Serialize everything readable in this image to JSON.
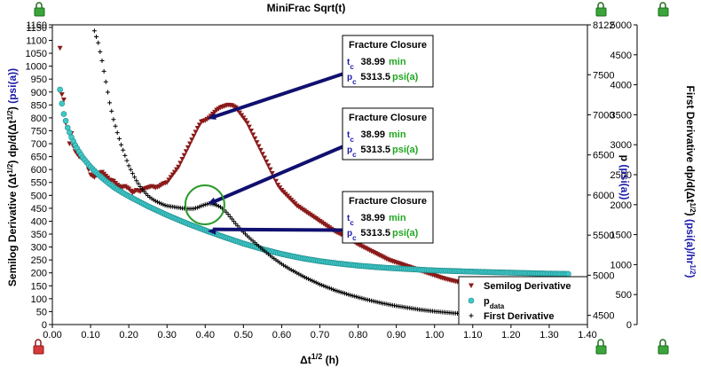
{
  "chart_data": {
    "type": "scatter",
    "title": "MiniFrac Sqrt(t)",
    "xlabel": "Δt^1/2 (h)",
    "ylabel_left": "Semilog Derivative (Δt^1/2) dp/d(Δt^1/2) (psi(a))",
    "ylabel_right1": "p (psi(a))",
    "ylabel_right2": "First Derivative dp/d(Δt^1/2) (psi(a)/hr^1/2)",
    "xlim": [
      0.0,
      1.4
    ],
    "ylim_left": [
      0,
      1160
    ],
    "ylim_p": [
      4385,
      8122
    ],
    "ylim_fd": [
      0,
      5000
    ],
    "x_ticks": [
      "0.00",
      "0.10",
      "0.20",
      "0.30",
      "0.40",
      "0.50",
      "0.60",
      "0.70",
      "0.80",
      "0.90",
      "1.00",
      "1.10",
      "1.20",
      "1.30",
      "1.40"
    ],
    "y_left_ticks": [
      "0",
      "50",
      "100",
      "150",
      "200",
      "250",
      "300",
      "350",
      "400",
      "450",
      "500",
      "550",
      "600",
      "650",
      "700",
      "750",
      "800",
      "850",
      "900",
      "950",
      "1000",
      "1050",
      "1100",
      "1150",
      "1160"
    ],
    "y_p_ticks": [
      "4500",
      "5000",
      "5500",
      "6000",
      "6500",
      "7000",
      "7500",
      "8122"
    ],
    "y_fd_ticks": [
      "0",
      "500",
      "1000",
      "1500",
      "2000",
      "2500",
      "3000",
      "3500",
      "4000",
      "4500",
      "5000"
    ],
    "series": [
      {
        "name": "Semilog Derivative",
        "axis": "left",
        "color": "#8b1a1a",
        "marker": "triangle-down",
        "x": [
          0.02,
          0.025,
          0.03,
          0.035,
          0.04,
          0.045,
          0.05,
          0.055,
          0.06,
          0.07,
          0.08,
          0.09,
          0.1,
          0.11,
          0.12,
          0.13,
          0.14,
          0.15,
          0.16,
          0.17,
          0.18,
          0.19,
          0.2,
          0.21,
          0.22,
          0.23,
          0.24,
          0.25,
          0.26,
          0.27,
          0.28,
          0.29,
          0.3,
          0.31,
          0.32,
          0.33,
          0.34,
          0.35,
          0.36,
          0.37,
          0.38,
          0.39,
          0.4,
          0.41,
          0.42,
          0.43,
          0.44,
          0.45,
          0.46,
          0.47,
          0.48,
          0.49,
          0.5,
          0.51,
          0.52,
          0.53,
          0.54,
          0.55,
          0.56,
          0.57,
          0.58,
          0.59,
          0.6,
          0.62,
          0.64,
          0.66,
          0.68,
          0.7,
          0.72,
          0.74,
          0.76,
          0.78,
          0.8,
          0.82,
          0.84,
          0.86,
          0.88,
          0.9,
          0.92,
          0.94,
          0.96,
          0.98,
          1.0,
          1.02,
          1.04,
          1.06,
          1.08,
          1.1,
          1.12
        ],
        "y": [
          1070,
          890,
          870,
          780,
          760,
          700,
          740,
          690,
          670,
          650,
          640,
          620,
          580,
          570,
          585,
          590,
          575,
          560,
          555,
          540,
          530,
          535,
          525,
          510,
          520,
          515,
          525,
          530,
          535,
          530,
          535,
          545,
          550,
          570,
          590,
          610,
          640,
          670,
          700,
          730,
          760,
          785,
          790,
          800,
          815,
          830,
          840,
          845,
          850,
          848,
          840,
          820,
          800,
          780,
          750,
          720,
          690,
          660,
          630,
          600,
          570,
          540,
          520,
          490,
          460,
          440,
          420,
          400,
          380,
          360,
          345,
          330,
          310,
          295,
          280,
          265,
          250,
          240,
          230,
          220,
          210,
          200,
          190,
          180,
          172,
          165,
          160,
          150,
          145
        ]
      },
      {
        "name": "pdata",
        "axis": "p",
        "color": "#40c8c8",
        "marker": "circle",
        "x": [
          0.02,
          0.025,
          0.03,
          0.04,
          0.05,
          0.06,
          0.07,
          0.08,
          0.1,
          0.12,
          0.14,
          0.16,
          0.18,
          0.2,
          0.25,
          0.3,
          0.35,
          0.4,
          0.45,
          0.5,
          0.55,
          0.6,
          0.65,
          0.7,
          0.75,
          0.8,
          0.85,
          0.9,
          0.95,
          1.0,
          1.05,
          1.1,
          1.15,
          1.2,
          1.25,
          1.3,
          1.35
        ],
        "y": [
          7315,
          7140,
          7010,
          6840,
          6720,
          6620,
          6540,
          6465,
          6350,
          6255,
          6175,
          6100,
          6040,
          5985,
          5860,
          5750,
          5650,
          5560,
          5475,
          5395,
          5325,
          5265,
          5215,
          5175,
          5145,
          5120,
          5100,
          5085,
          5072,
          5060,
          5052,
          5045,
          5038,
          5032,
          5026,
          5020,
          5016
        ]
      },
      {
        "name": "First Derivative",
        "axis": "fd",
        "color": "#000000",
        "marker": "plus",
        "x": [
          0.11,
          0.12,
          0.13,
          0.14,
          0.15,
          0.16,
          0.17,
          0.18,
          0.19,
          0.2,
          0.21,
          0.22,
          0.23,
          0.24,
          0.25,
          0.26,
          0.27,
          0.28,
          0.29,
          0.3,
          0.31,
          0.32,
          0.33,
          0.34,
          0.35,
          0.36,
          0.37,
          0.38,
          0.39,
          0.4,
          0.41,
          0.42,
          0.43,
          0.44,
          0.45,
          0.46,
          0.47,
          0.48,
          0.5,
          0.52,
          0.54,
          0.56,
          0.58,
          0.6,
          0.62,
          0.64,
          0.66,
          0.68,
          0.7,
          0.72,
          0.74,
          0.76,
          0.78,
          0.8,
          0.82,
          0.84,
          0.86,
          0.88,
          0.9,
          0.92,
          0.94,
          0.96,
          0.98,
          1.0,
          1.02,
          1.04,
          1.06,
          1.08,
          1.1
        ],
        "y": [
          4900,
          4700,
          4400,
          4050,
          3700,
          3420,
          3200,
          3000,
          2820,
          2650,
          2520,
          2400,
          2300,
          2220,
          2150,
          2100,
          2060,
          2030,
          2000,
          1980,
          1970,
          1960,
          1950,
          1940,
          1935,
          1930,
          1935,
          1950,
          1980,
          2000,
          2020,
          2010,
          1990,
          1960,
          1910,
          1840,
          1760,
          1680,
          1540,
          1420,
          1310,
          1200,
          1100,
          1010,
          930,
          860,
          790,
          730,
          670,
          620,
          570,
          530,
          490,
          455,
          420,
          390,
          360,
          335,
          310,
          290,
          270,
          250,
          235,
          220,
          208,
          196,
          186,
          176,
          166
        ]
      }
    ],
    "annotations": [
      {
        "title": "Fracture Closure",
        "tc_key": "t",
        "tc_sub": "c",
        "tc_value": "38.99",
        "tc_unit": "min",
        "pc_key": "p",
        "pc_sub": "c",
        "pc_value": "5313.5",
        "pc_unit": "psi(a)",
        "target_series": "Semilog Derivative",
        "target_x": 0.406
      },
      {
        "title": "Fracture Closure",
        "tc_key": "t",
        "tc_sub": "c",
        "tc_value": "38.99",
        "tc_unit": "min",
        "pc_key": "p",
        "pc_sub": "c",
        "pc_value": "5313.5",
        "pc_unit": "psi(a)",
        "target_series": "First Derivative",
        "target_x": 0.406
      },
      {
        "title": "Fracture Closure",
        "tc_key": "t",
        "tc_sub": "c",
        "tc_value": "38.99",
        "tc_unit": "min",
        "pc_key": "p",
        "pc_sub": "c",
        "pc_value": "5313.5",
        "pc_unit": "psi(a)",
        "target_series": "pdata",
        "target_x": 0.406
      }
    ],
    "legend": {
      "placement": "bottom-right",
      "entries": [
        {
          "label": "Semilog Derivative",
          "marker": "triangle-down",
          "color": "#8b1a1a"
        },
        {
          "label": "p",
          "sub": "data",
          "marker": "circle",
          "color": "#40c8c8"
        },
        {
          "label": "First Derivative",
          "marker": "plus",
          "color": "#000000"
        }
      ]
    },
    "grid": false
  }
}
